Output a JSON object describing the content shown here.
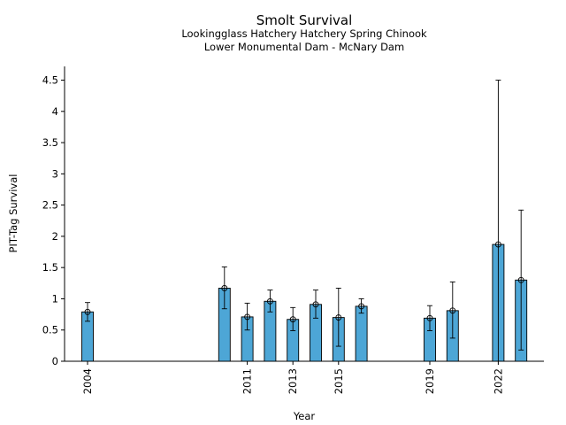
{
  "chart_data": {
    "type": "bar",
    "title": "Smolt Survival",
    "subtitle_lines": [
      "Lookingglass Hatchery Hatchery Spring Chinook",
      "Lower Monumental Dam - McNary Dam"
    ],
    "xlabel": "Year",
    "ylabel": "PIT-Tag Survival",
    "ylim": [
      0,
      4.72
    ],
    "yticks": [
      "0",
      "0.5",
      "1",
      "1.5",
      "2",
      "2.5",
      "3",
      "3.5",
      "4",
      "4.5"
    ],
    "xlim": [
      2003,
      2024.6
    ],
    "xticks": [
      "2004",
      "2011",
      "2013",
      "2015",
      "2019",
      "2022"
    ],
    "bar_color": "#4da6d6",
    "grid": false,
    "legend": "none",
    "data": [
      {
        "year": 2004,
        "value": 0.79,
        "lower": 0.64,
        "upper": 0.94
      },
      {
        "year": 2010,
        "value": 1.17,
        "lower": 0.84,
        "upper": 1.51
      },
      {
        "year": 2011,
        "value": 0.71,
        "lower": 0.5,
        "upper": 0.93
      },
      {
        "year": 2012,
        "value": 0.96,
        "lower": 0.79,
        "upper": 1.14
      },
      {
        "year": 2013,
        "value": 0.67,
        "lower": 0.49,
        "upper": 0.86
      },
      {
        "year": 2014,
        "value": 0.91,
        "lower": 0.69,
        "upper": 1.14
      },
      {
        "year": 2015,
        "value": 0.7,
        "lower": 0.24,
        "upper": 1.17
      },
      {
        "year": 2016,
        "value": 0.88,
        "lower": 0.77,
        "upper": 1.0
      },
      {
        "year": 2019,
        "value": 0.69,
        "lower": 0.49,
        "upper": 0.89
      },
      {
        "year": 2020,
        "value": 0.81,
        "lower": 0.37,
        "upper": 1.27
      },
      {
        "year": 2022,
        "value": 1.87,
        "lower": 0.0,
        "upper": 4.5
      },
      {
        "year": 2023,
        "value": 1.3,
        "lower": 0.18,
        "upper": 2.42
      }
    ]
  }
}
